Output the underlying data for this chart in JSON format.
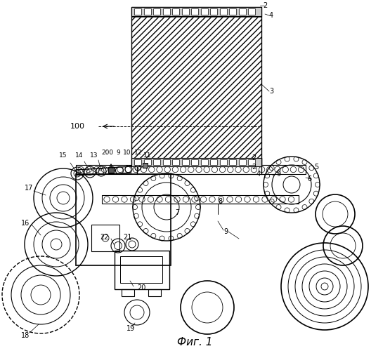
{
  "title": "Фиг. 1",
  "bg_color": "#ffffff",
  "fig_width": 5.55,
  "fig_height": 5.0,
  "dpi": 100
}
